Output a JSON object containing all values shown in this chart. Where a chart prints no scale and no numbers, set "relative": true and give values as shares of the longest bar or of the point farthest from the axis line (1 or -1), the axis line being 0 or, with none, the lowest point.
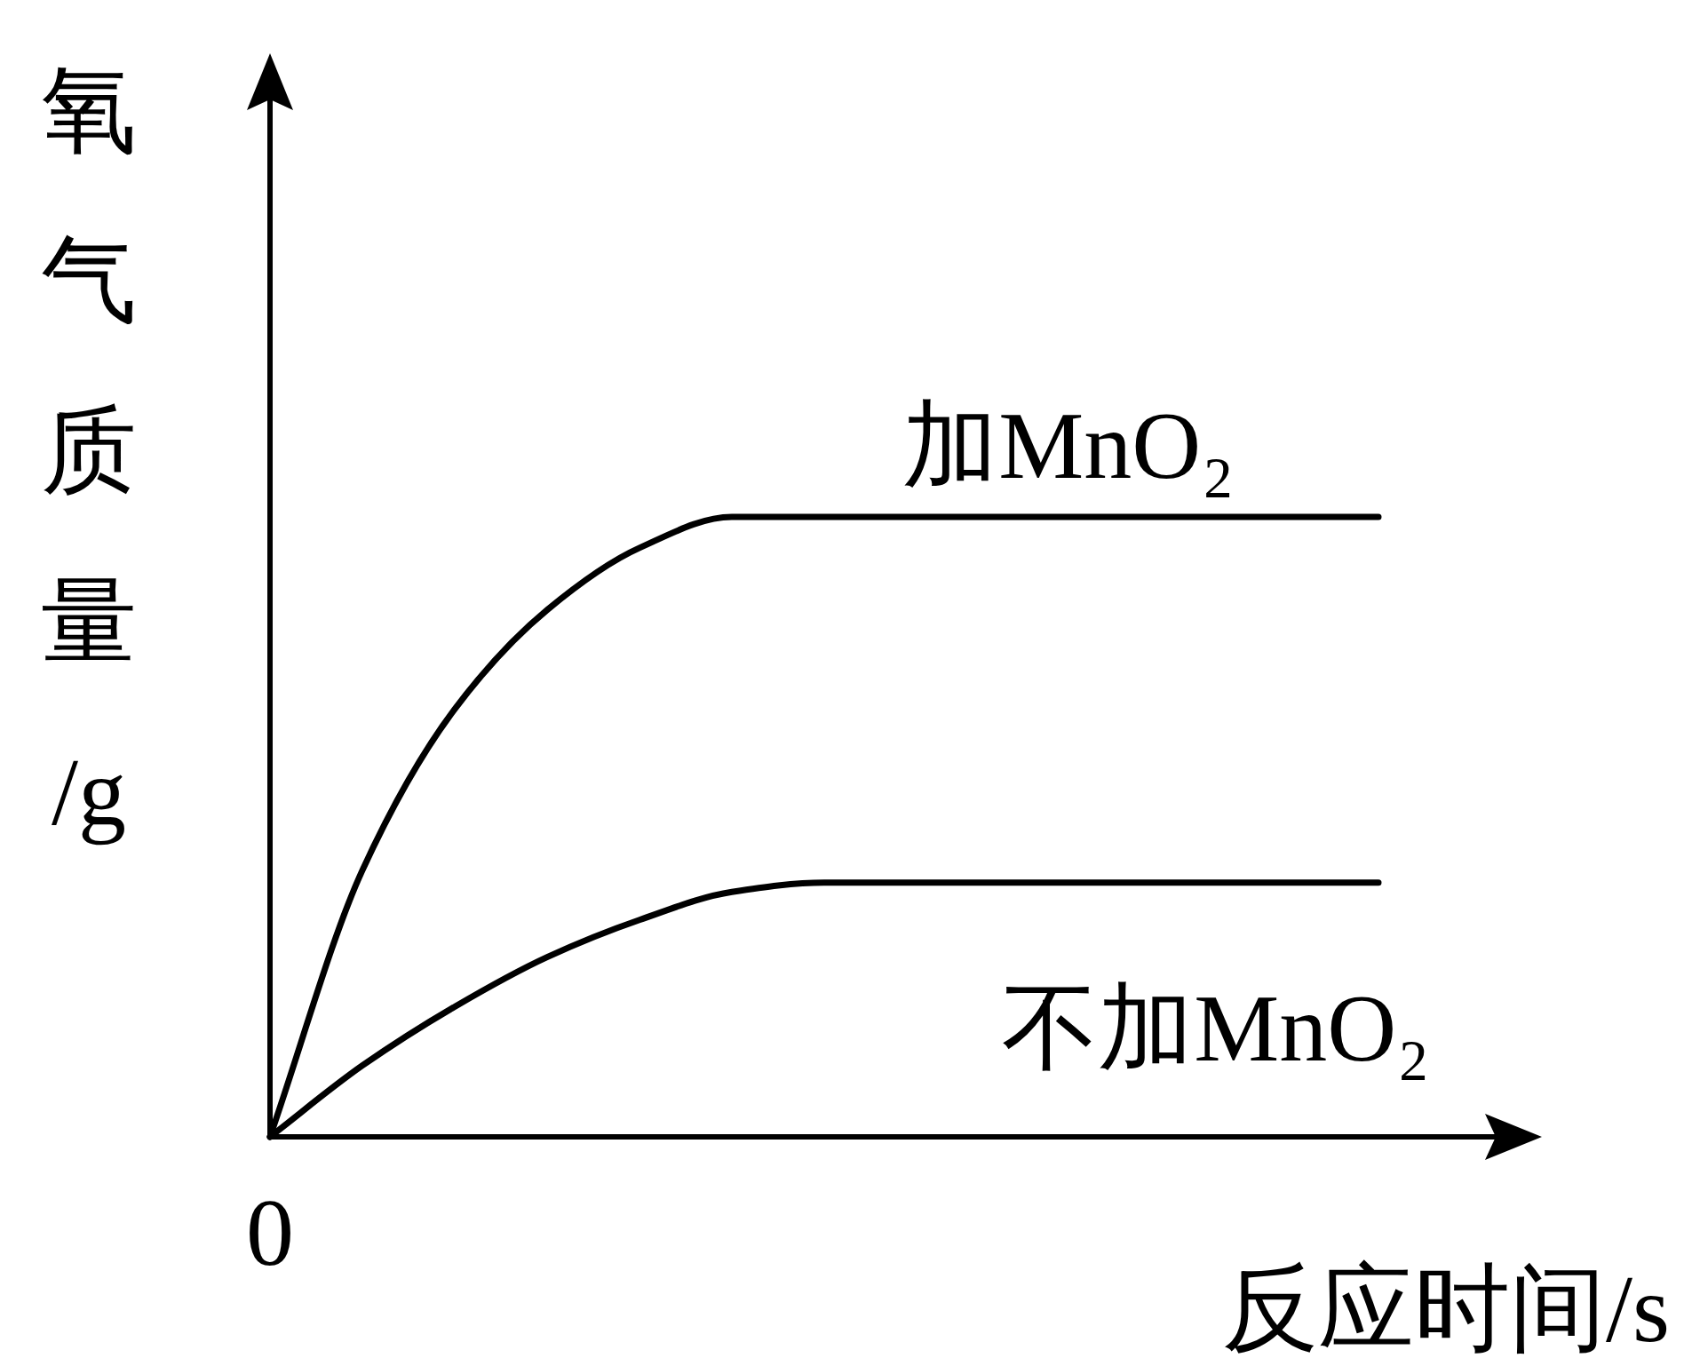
{
  "chart_data": {
    "type": "line",
    "relative": true,
    "categories": [
      null,
      null,
      null,
      null,
      null,
      null,
      null,
      null,
      null,
      null,
      null,
      null,
      null
    ],
    "series": [
      {
        "name": "加MnO₂",
        "color": "#000000",
        "values": [
          0,
          0.43,
          0.69,
          0.85,
          0.95,
          1.0,
          1.0,
          1.0,
          1.0,
          1.0,
          1.0,
          1.0,
          1.0
        ]
      },
      {
        "name": "不加MnO₂",
        "color": "#000000",
        "values": [
          0,
          0.115,
          0.21,
          0.29,
          0.35,
          0.395,
          0.41,
          0.41,
          0.41,
          0.41,
          0.41,
          0.41,
          0.41
        ]
      }
    ],
    "xlabel": "反应时间/s",
    "ylabel": "氧气质量/g",
    "annotations": [
      "0"
    ]
  }
}
